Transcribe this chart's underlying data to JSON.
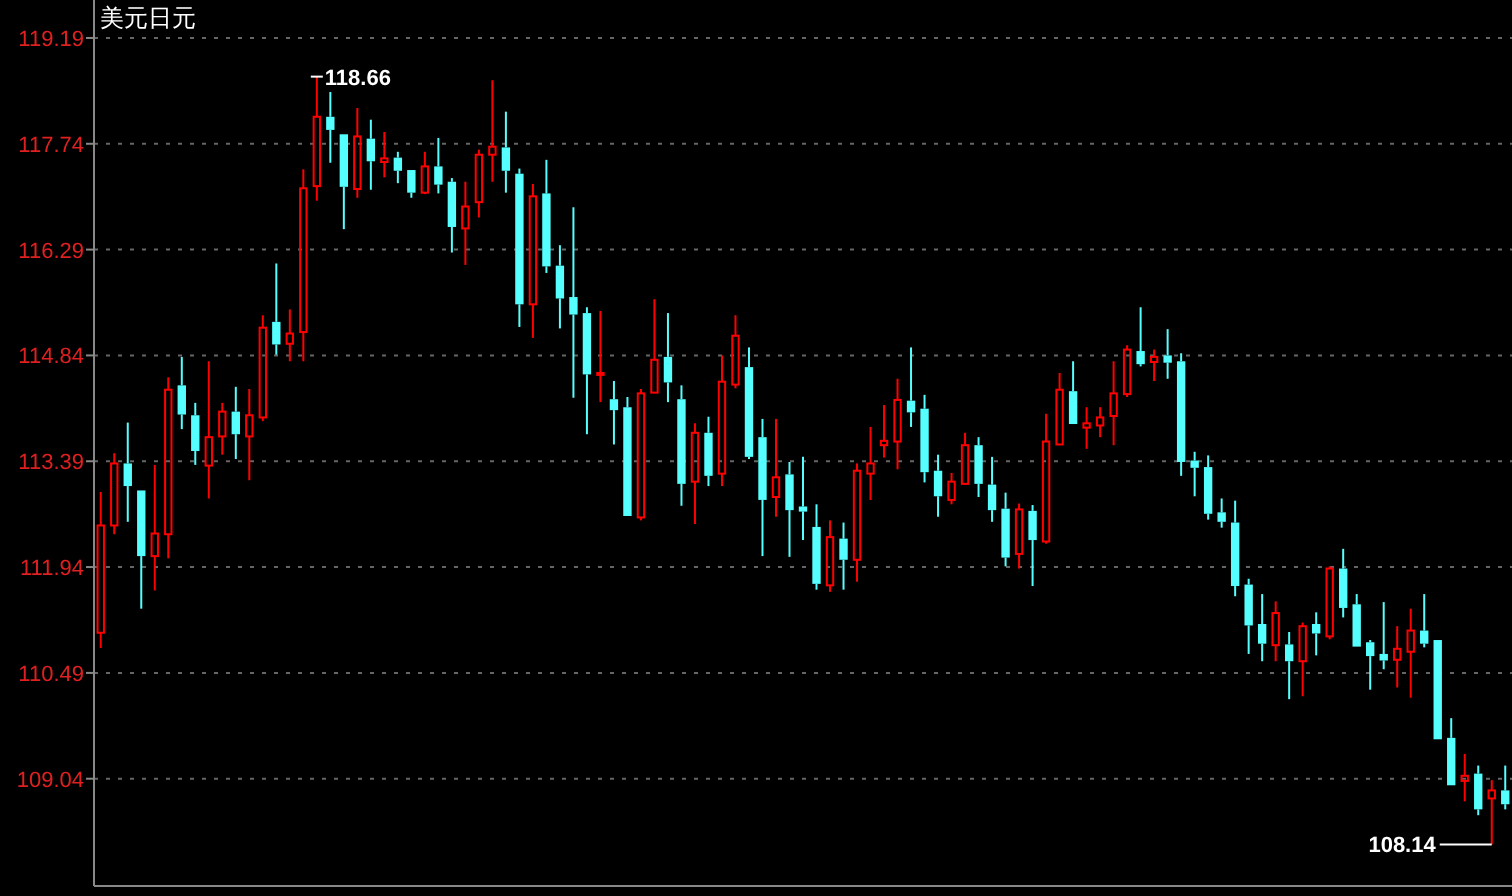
{
  "chart_data": {
    "type": "candlestick",
    "title": "美元日元",
    "categories": [
      null,
      null,
      null,
      null,
      null,
      null,
      null,
      null,
      null,
      null,
      null,
      null,
      null,
      null,
      null,
      null,
      null,
      null,
      null,
      null,
      null,
      null,
      null,
      null,
      null,
      null,
      null,
      null,
      null,
      null,
      null,
      null,
      null,
      null,
      null,
      null,
      null,
      null,
      null,
      null,
      null,
      null,
      null,
      null,
      null,
      null,
      null,
      null,
      null,
      null,
      null,
      null,
      null,
      null,
      null,
      null,
      null,
      null,
      null,
      null,
      null,
      null,
      null,
      null,
      null,
      null,
      null,
      null,
      null,
      null,
      null,
      null,
      null,
      null,
      null,
      null,
      null,
      null,
      null,
      null,
      null,
      null,
      null,
      null,
      null,
      null,
      null,
      null,
      null,
      null,
      null,
      null,
      null,
      null,
      null,
      null,
      null,
      null,
      null,
      null,
      null,
      null,
      null,
      null,
      null
    ],
    "ohlc": [
      [
        111.04,
        112.97,
        110.83,
        112.51
      ],
      [
        112.51,
        113.5,
        112.39,
        113.36
      ],
      [
        113.36,
        113.92,
        112.56,
        113.05
      ],
      [
        112.99,
        112.99,
        111.37,
        112.09
      ],
      [
        112.09,
        113.34,
        111.62,
        112.4
      ],
      [
        112.39,
        114.54,
        112.06,
        114.37
      ],
      [
        114.43,
        114.82,
        113.83,
        114.03
      ],
      [
        114.02,
        114.19,
        113.34,
        113.53
      ],
      [
        113.33,
        114.76,
        112.88,
        113.72
      ],
      [
        113.73,
        114.19,
        113.48,
        114.07
      ],
      [
        114.07,
        114.41,
        113.42,
        113.76
      ],
      [
        113.73,
        114.38,
        113.13,
        114.02
      ],
      [
        113.99,
        115.39,
        113.94,
        115.22
      ],
      [
        115.3,
        116.1,
        114.85,
        114.99
      ],
      [
        115.0,
        115.47,
        114.76,
        115.14
      ],
      [
        115.16,
        117.39,
        114.76,
        117.13
      ],
      [
        117.16,
        118.66,
        116.96,
        118.11
      ],
      [
        118.11,
        118.45,
        117.48,
        117.93
      ],
      [
        117.87,
        117.87,
        116.57,
        117.15
      ],
      [
        117.12,
        118.23,
        117.0,
        117.84
      ],
      [
        117.81,
        118.07,
        117.11,
        117.5
      ],
      [
        117.49,
        117.9,
        117.28,
        117.54
      ],
      [
        117.55,
        117.63,
        117.2,
        117.37
      ],
      [
        117.38,
        117.38,
        117.0,
        117.07
      ],
      [
        117.07,
        117.63,
        117.05,
        117.43
      ],
      [
        117.43,
        117.82,
        117.06,
        117.18
      ],
      [
        117.22,
        117.27,
        116.25,
        116.6
      ],
      [
        116.58,
        117.22,
        116.08,
        116.88
      ],
      [
        116.94,
        117.66,
        116.73,
        117.59
      ],
      [
        117.59,
        118.61,
        117.22,
        117.7
      ],
      [
        117.69,
        118.18,
        117.07,
        117.37
      ],
      [
        117.33,
        117.4,
        115.23,
        115.54
      ],
      [
        115.54,
        117.19,
        115.08,
        117.02
      ],
      [
        117.06,
        117.52,
        115.97,
        116.06
      ],
      [
        116.07,
        116.35,
        115.21,
        115.62
      ],
      [
        115.64,
        116.87,
        114.26,
        115.4
      ],
      [
        115.42,
        115.5,
        113.76,
        114.58
      ],
      [
        114.58,
        115.45,
        114.2,
        114.6
      ],
      [
        114.24,
        114.49,
        113.62,
        114.09
      ],
      [
        114.13,
        114.27,
        112.64,
        112.64
      ],
      [
        112.62,
        114.38,
        112.58,
        114.32
      ],
      [
        114.33,
        115.61,
        114.33,
        114.78
      ],
      [
        114.82,
        115.42,
        114.2,
        114.47
      ],
      [
        114.24,
        114.43,
        112.78,
        113.08
      ],
      [
        113.11,
        113.91,
        112.53,
        113.78
      ],
      [
        113.78,
        114.0,
        113.05,
        113.19
      ],
      [
        113.22,
        114.84,
        113.05,
        114.48
      ],
      [
        114.44,
        115.39,
        114.39,
        115.11
      ],
      [
        114.68,
        114.95,
        113.42,
        113.45
      ],
      [
        113.72,
        113.97,
        112.09,
        112.86
      ],
      [
        112.9,
        113.97,
        112.63,
        113.17
      ],
      [
        113.21,
        113.38,
        112.08,
        112.72
      ],
      [
        112.77,
        113.45,
        112.31,
        112.7
      ],
      [
        112.49,
        112.8,
        111.63,
        111.71
      ],
      [
        111.69,
        112.58,
        111.6,
        112.35
      ],
      [
        112.33,
        112.55,
        111.63,
        112.04
      ],
      [
        112.04,
        113.36,
        111.74,
        113.26
      ],
      [
        113.22,
        113.86,
        112.86,
        113.36
      ],
      [
        113.61,
        114.16,
        113.44,
        113.67
      ],
      [
        113.66,
        114.52,
        113.28,
        114.23
      ],
      [
        114.22,
        114.95,
        113.86,
        114.06
      ],
      [
        114.11,
        114.3,
        113.1,
        113.24
      ],
      [
        113.26,
        113.48,
        112.63,
        112.91
      ],
      [
        112.86,
        113.23,
        112.8,
        113.11
      ],
      [
        113.08,
        113.78,
        113.08,
        113.61
      ],
      [
        113.61,
        113.72,
        112.9,
        113.08
      ],
      [
        113.07,
        113.45,
        112.56,
        112.72
      ],
      [
        112.74,
        112.96,
        111.95,
        112.07
      ],
      [
        112.12,
        112.81,
        111.92,
        112.73
      ],
      [
        112.71,
        112.79,
        111.68,
        112.31
      ],
      [
        112.29,
        114.04,
        112.26,
        113.66
      ],
      [
        113.62,
        114.6,
        113.61,
        114.37
      ],
      [
        114.35,
        114.76,
        113.9,
        113.9
      ],
      [
        113.85,
        114.13,
        113.56,
        113.91
      ],
      [
        113.88,
        114.13,
        113.72,
        113.99
      ],
      [
        114.01,
        114.76,
        113.61,
        114.32
      ],
      [
        114.31,
        114.98,
        114.27,
        114.92
      ],
      [
        114.9,
        115.5,
        114.69,
        114.72
      ],
      [
        114.75,
        114.92,
        114.49,
        114.82
      ],
      [
        114.84,
        115.2,
        114.52,
        114.74
      ],
      [
        114.76,
        114.87,
        113.19,
        113.38
      ],
      [
        113.4,
        113.52,
        112.91,
        113.3
      ],
      [
        113.31,
        113.47,
        112.59,
        112.67
      ],
      [
        112.69,
        112.88,
        112.48,
        112.56
      ],
      [
        112.55,
        112.85,
        111.54,
        111.68
      ],
      [
        111.7,
        111.78,
        110.75,
        111.14
      ],
      [
        111.16,
        111.57,
        110.65,
        110.89
      ],
      [
        110.87,
        111.47,
        110.65,
        111.31
      ],
      [
        110.88,
        111.05,
        110.13,
        110.65
      ],
      [
        110.65,
        111.18,
        110.17,
        111.13
      ],
      [
        111.16,
        111.32,
        110.73,
        111.03
      ],
      [
        110.99,
        111.95,
        110.95,
        111.92
      ],
      [
        111.92,
        112.19,
        111.25,
        111.38
      ],
      [
        111.43,
        111.57,
        110.84,
        110.85
      ],
      [
        110.91,
        110.94,
        110.26,
        110.72
      ],
      [
        110.75,
        111.46,
        110.54,
        110.66
      ],
      [
        110.67,
        111.13,
        110.29,
        110.82
      ],
      [
        110.78,
        111.37,
        110.15,
        111.07
      ],
      [
        111.07,
        111.57,
        110.84,
        110.89
      ],
      [
        110.94,
        110.94,
        109.58,
        109.58
      ],
      [
        109.6,
        109.87,
        108.95,
        108.95
      ],
      [
        109.01,
        109.38,
        108.73,
        109.08
      ],
      [
        109.11,
        109.22,
        108.54,
        108.62
      ],
      [
        108.77,
        109.02,
        108.14,
        108.88
      ],
      [
        108.88,
        109.22,
        108.62,
        108.69
      ]
    ],
    "colors": [
      "#ff0000",
      "#ff0000",
      "#55ffff",
      "#55ffff",
      "#ff0000",
      "#ff0000",
      "#55ffff",
      "#55ffff",
      "#ff0000",
      "#ff0000",
      "#55ffff",
      "#ff0000",
      "#ff0000",
      "#55ffff",
      "#ff0000",
      "#ff0000",
      "#ff0000",
      "#55ffff",
      "#55ffff",
      "#ff0000",
      "#55ffff",
      "#ff0000",
      "#55ffff",
      "#55ffff",
      "#ff0000",
      "#55ffff",
      "#55ffff",
      "#ff0000",
      "#ff0000",
      "#ff0000",
      "#55ffff",
      "#55ffff",
      "#ff0000",
      "#55ffff",
      "#55ffff",
      "#55ffff",
      "#55ffff",
      "#ff0000",
      "#55ffff",
      "#55ffff",
      "#ff0000",
      "#ff0000",
      "#55ffff",
      "#55ffff",
      "#ff0000",
      "#55ffff",
      "#ff0000",
      "#ff0000",
      "#55ffff",
      "#55ffff",
      "#ff0000",
      "#55ffff",
      "#55ffff",
      "#55ffff",
      "#ff0000",
      "#55ffff",
      "#ff0000",
      "#ff0000",
      "#ff0000",
      "#ff0000",
      "#55ffff",
      "#55ffff",
      "#55ffff",
      "#ff0000",
      "#ff0000",
      "#55ffff",
      "#55ffff",
      "#55ffff",
      "#ff0000",
      "#55ffff",
      "#ff0000",
      "#ff0000",
      "#55ffff",
      "#ff0000",
      "#ff0000",
      "#ff0000",
      "#ff0000",
      "#55ffff",
      "#ff0000",
      "#55ffff",
      "#55ffff",
      "#55ffff",
      "#55ffff",
      "#55ffff",
      "#55ffff",
      "#55ffff",
      "#55ffff",
      "#ff0000",
      "#55ffff",
      "#ff0000",
      "#55ffff",
      "#ff0000",
      "#55ffff",
      "#55ffff",
      "#55ffff",
      "#55ffff",
      "#ff0000",
      "#ff0000",
      "#55ffff",
      "#55ffff",
      "#55ffff",
      "#ff0000",
      "#55ffff",
      "#ff0000",
      "#55ffff"
    ],
    "ylim": [
      107.57,
      119.71
    ],
    "yticks": [
      109.04,
      110.49,
      111.94,
      113.39,
      114.84,
      116.29,
      117.74,
      119.19
    ],
    "grid": "y",
    "annotations": [
      "118.66",
      "108.14"
    ]
  }
}
